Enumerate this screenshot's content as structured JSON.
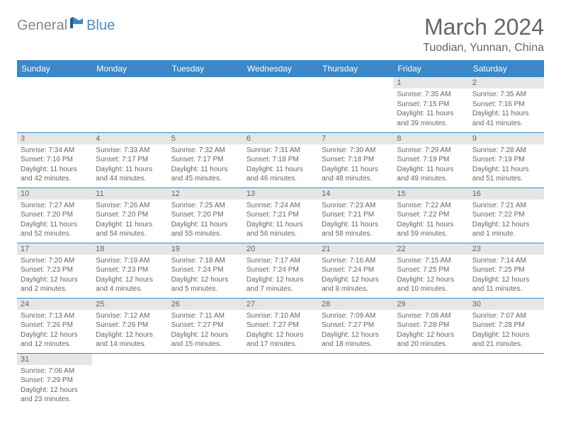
{
  "logo": {
    "text1": "General",
    "text2": "Blue"
  },
  "header": {
    "month": "March 2024",
    "location": "Tuodian, Yunnan, China"
  },
  "colors": {
    "header_bg": "#3b87c8",
    "header_fg": "#ffffff",
    "daynum_bg": "#e6e6e6",
    "text": "#666666",
    "logo_gray": "#888888",
    "logo_blue": "#4a8bc2"
  },
  "weekdays": [
    "Sunday",
    "Monday",
    "Tuesday",
    "Wednesday",
    "Thursday",
    "Friday",
    "Saturday"
  ],
  "weeks": [
    [
      null,
      null,
      null,
      null,
      null,
      {
        "n": "1",
        "sunrise": "Sunrise: 7:35 AM",
        "sunset": "Sunset: 7:15 PM",
        "daylight": "Daylight: 11 hours and 39 minutes."
      },
      {
        "n": "2",
        "sunrise": "Sunrise: 7:35 AM",
        "sunset": "Sunset: 7:16 PM",
        "daylight": "Daylight: 11 hours and 41 minutes."
      }
    ],
    [
      {
        "n": "3",
        "sunrise": "Sunrise: 7:34 AM",
        "sunset": "Sunset: 7:16 PM",
        "daylight": "Daylight: 11 hours and 42 minutes."
      },
      {
        "n": "4",
        "sunrise": "Sunrise: 7:33 AM",
        "sunset": "Sunset: 7:17 PM",
        "daylight": "Daylight: 11 hours and 44 minutes."
      },
      {
        "n": "5",
        "sunrise": "Sunrise: 7:32 AM",
        "sunset": "Sunset: 7:17 PM",
        "daylight": "Daylight: 11 hours and 45 minutes."
      },
      {
        "n": "6",
        "sunrise": "Sunrise: 7:31 AM",
        "sunset": "Sunset: 7:18 PM",
        "daylight": "Daylight: 11 hours and 46 minutes."
      },
      {
        "n": "7",
        "sunrise": "Sunrise: 7:30 AM",
        "sunset": "Sunset: 7:18 PM",
        "daylight": "Daylight: 11 hours and 48 minutes."
      },
      {
        "n": "8",
        "sunrise": "Sunrise: 7:29 AM",
        "sunset": "Sunset: 7:19 PM",
        "daylight": "Daylight: 11 hours and 49 minutes."
      },
      {
        "n": "9",
        "sunrise": "Sunrise: 7:28 AM",
        "sunset": "Sunset: 7:19 PM",
        "daylight": "Daylight: 11 hours and 51 minutes."
      }
    ],
    [
      {
        "n": "10",
        "sunrise": "Sunrise: 7:27 AM",
        "sunset": "Sunset: 7:20 PM",
        "daylight": "Daylight: 11 hours and 52 minutes."
      },
      {
        "n": "11",
        "sunrise": "Sunrise: 7:26 AM",
        "sunset": "Sunset: 7:20 PM",
        "daylight": "Daylight: 11 hours and 54 minutes."
      },
      {
        "n": "12",
        "sunrise": "Sunrise: 7:25 AM",
        "sunset": "Sunset: 7:20 PM",
        "daylight": "Daylight: 11 hours and 55 minutes."
      },
      {
        "n": "13",
        "sunrise": "Sunrise: 7:24 AM",
        "sunset": "Sunset: 7:21 PM",
        "daylight": "Daylight: 11 hours and 56 minutes."
      },
      {
        "n": "14",
        "sunrise": "Sunrise: 7:23 AM",
        "sunset": "Sunset: 7:21 PM",
        "daylight": "Daylight: 11 hours and 58 minutes."
      },
      {
        "n": "15",
        "sunrise": "Sunrise: 7:22 AM",
        "sunset": "Sunset: 7:22 PM",
        "daylight": "Daylight: 11 hours and 59 minutes."
      },
      {
        "n": "16",
        "sunrise": "Sunrise: 7:21 AM",
        "sunset": "Sunset: 7:22 PM",
        "daylight": "Daylight: 12 hours and 1 minute."
      }
    ],
    [
      {
        "n": "17",
        "sunrise": "Sunrise: 7:20 AM",
        "sunset": "Sunset: 7:23 PM",
        "daylight": "Daylight: 12 hours and 2 minutes."
      },
      {
        "n": "18",
        "sunrise": "Sunrise: 7:19 AM",
        "sunset": "Sunset: 7:23 PM",
        "daylight": "Daylight: 12 hours and 4 minutes."
      },
      {
        "n": "19",
        "sunrise": "Sunrise: 7:18 AM",
        "sunset": "Sunset: 7:24 PM",
        "daylight": "Daylight: 12 hours and 5 minutes."
      },
      {
        "n": "20",
        "sunrise": "Sunrise: 7:17 AM",
        "sunset": "Sunset: 7:24 PM",
        "daylight": "Daylight: 12 hours and 7 minutes."
      },
      {
        "n": "21",
        "sunrise": "Sunrise: 7:16 AM",
        "sunset": "Sunset: 7:24 PM",
        "daylight": "Daylight: 12 hours and 8 minutes."
      },
      {
        "n": "22",
        "sunrise": "Sunrise: 7:15 AM",
        "sunset": "Sunset: 7:25 PM",
        "daylight": "Daylight: 12 hours and 10 minutes."
      },
      {
        "n": "23",
        "sunrise": "Sunrise: 7:14 AM",
        "sunset": "Sunset: 7:25 PM",
        "daylight": "Daylight: 12 hours and 11 minutes."
      }
    ],
    [
      {
        "n": "24",
        "sunrise": "Sunrise: 7:13 AM",
        "sunset": "Sunset: 7:26 PM",
        "daylight": "Daylight: 12 hours and 12 minutes."
      },
      {
        "n": "25",
        "sunrise": "Sunrise: 7:12 AM",
        "sunset": "Sunset: 7:26 PM",
        "daylight": "Daylight: 12 hours and 14 minutes."
      },
      {
        "n": "26",
        "sunrise": "Sunrise: 7:11 AM",
        "sunset": "Sunset: 7:27 PM",
        "daylight": "Daylight: 12 hours and 15 minutes."
      },
      {
        "n": "27",
        "sunrise": "Sunrise: 7:10 AM",
        "sunset": "Sunset: 7:27 PM",
        "daylight": "Daylight: 12 hours and 17 minutes."
      },
      {
        "n": "28",
        "sunrise": "Sunrise: 7:09 AM",
        "sunset": "Sunset: 7:27 PM",
        "daylight": "Daylight: 12 hours and 18 minutes."
      },
      {
        "n": "29",
        "sunrise": "Sunrise: 7:08 AM",
        "sunset": "Sunset: 7:28 PM",
        "daylight": "Daylight: 12 hours and 20 minutes."
      },
      {
        "n": "30",
        "sunrise": "Sunrise: 7:07 AM",
        "sunset": "Sunset: 7:28 PM",
        "daylight": "Daylight: 12 hours and 21 minutes."
      }
    ],
    [
      {
        "n": "31",
        "sunrise": "Sunrise: 7:06 AM",
        "sunset": "Sunset: 7:29 PM",
        "daylight": "Daylight: 12 hours and 23 minutes."
      },
      null,
      null,
      null,
      null,
      null,
      null
    ]
  ]
}
